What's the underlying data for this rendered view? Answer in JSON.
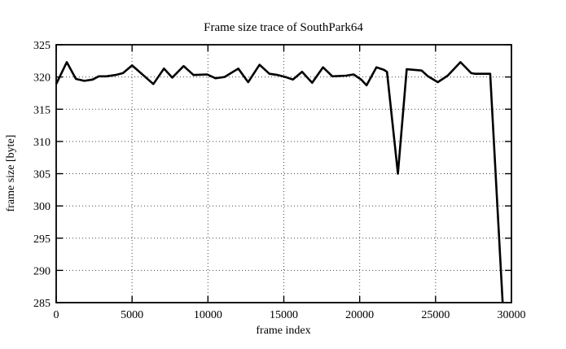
{
  "page": {
    "background": "#ffffff",
    "text_color": "#000000"
  },
  "chart_data": {
    "type": "line",
    "title": "Frame size trace of SouthPark64",
    "xlabel": "frame index",
    "ylabel": "frame size [byte]",
    "xlim": [
      0,
      30000
    ],
    "ylim": [
      285,
      325
    ],
    "xticks": [
      0,
      5000,
      10000,
      15000,
      20000,
      25000,
      30000
    ],
    "yticks": [
      285,
      290,
      295,
      300,
      305,
      310,
      315,
      320,
      325
    ],
    "grid": true,
    "grid_style": "dotted",
    "legend": "none",
    "line_color": "#000000",
    "grid_color": "#444444",
    "series": [
      {
        "name": "frame size",
        "points": [
          [
            0,
            318.9
          ],
          [
            700,
            322.3
          ],
          [
            1300,
            319.7
          ],
          [
            1850,
            319.4
          ],
          [
            2400,
            319.6
          ],
          [
            2800,
            320.1
          ],
          [
            3300,
            320.1
          ],
          [
            3900,
            320.3
          ],
          [
            4400,
            320.6
          ],
          [
            5000,
            321.8
          ],
          [
            6400,
            318.9
          ],
          [
            7100,
            321.3
          ],
          [
            7650,
            319.9
          ],
          [
            8400,
            321.7
          ],
          [
            9050,
            320.3
          ],
          [
            9950,
            320.4
          ],
          [
            10500,
            319.8
          ],
          [
            11100,
            320.0
          ],
          [
            12000,
            321.3
          ],
          [
            12650,
            319.2
          ],
          [
            13400,
            321.9
          ],
          [
            14050,
            320.5
          ],
          [
            14600,
            320.3
          ],
          [
            15100,
            320.0
          ],
          [
            15600,
            319.6
          ],
          [
            16200,
            320.8
          ],
          [
            16870,
            319.1
          ],
          [
            17580,
            321.5
          ],
          [
            18200,
            320.1
          ],
          [
            19100,
            320.2
          ],
          [
            19600,
            320.4
          ],
          [
            20100,
            319.6
          ],
          [
            20450,
            318.7
          ],
          [
            21100,
            321.5
          ],
          [
            21600,
            321.1
          ],
          [
            21800,
            320.8
          ],
          [
            22520,
            305.0
          ],
          [
            23100,
            321.2
          ],
          [
            24080,
            321.0
          ],
          [
            24500,
            320.1
          ],
          [
            25150,
            319.2
          ],
          [
            25800,
            320.2
          ],
          [
            26640,
            322.3
          ],
          [
            27350,
            320.6
          ],
          [
            27600,
            320.5
          ],
          [
            28600,
            320.5
          ],
          [
            29420,
            285.0
          ]
        ]
      }
    ]
  }
}
